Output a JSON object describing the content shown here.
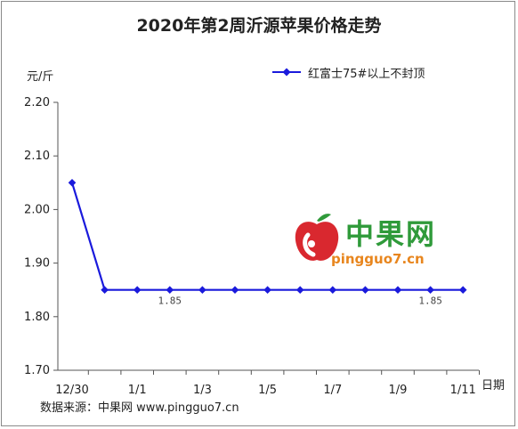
{
  "chart_data": {
    "type": "line",
    "title": "2020年第2周沂源苹果价格走势",
    "ylabel": "元/斤",
    "xlabel": "日期",
    "ylim": [
      1.7,
      2.2
    ],
    "yticks": [
      "1.70",
      "1.80",
      "1.90",
      "2.00",
      "2.10",
      "2.20"
    ],
    "x": [
      "12/30",
      "12/31",
      "1/1",
      "1/2",
      "1/3",
      "1/4",
      "1/5",
      "1/6",
      "1/7",
      "1/8",
      "1/9",
      "1/10",
      "1/11"
    ],
    "xtick_labels": [
      "12/30",
      "1/1",
      "1/3",
      "1/5",
      "1/7",
      "1/9",
      "1/11"
    ],
    "series": [
      {
        "name": "红富士75#以上不封顶",
        "values": [
          2.05,
          1.85,
          1.85,
          1.85,
          1.85,
          1.85,
          1.85,
          1.85,
          1.85,
          1.85,
          1.85,
          1.85,
          1.85
        ],
        "color": "#1a1adc"
      }
    ],
    "annotations": [
      {
        "index": 3,
        "text": "1.85"
      },
      {
        "index": 11,
        "text": "1.85"
      }
    ],
    "grid": false,
    "legend": "top-right"
  },
  "source": "数据来源：中果网 www.pingguo7.cn",
  "watermark": {
    "brand": "中果网",
    "url": "pingguo7.cn",
    "logo_icon": "apple-logo-icon"
  },
  "colors": {
    "line": "#1a1adc",
    "brand_green": "#2f9a3a",
    "brand_orange": "#e8861e",
    "logo_red": "#d9282f"
  }
}
